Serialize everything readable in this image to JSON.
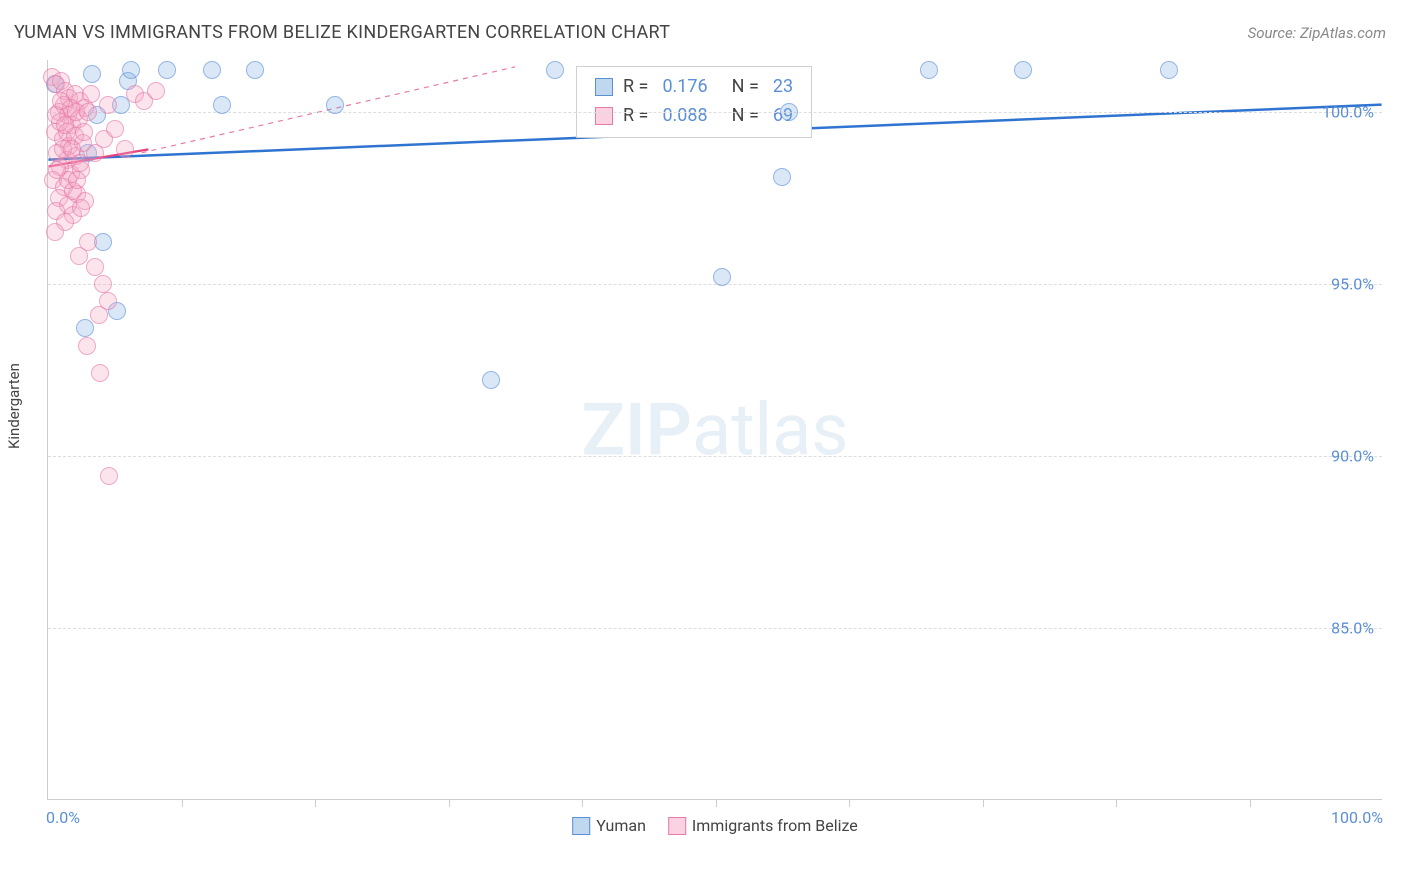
{
  "header": {
    "title": "YUMAN VS IMMIGRANTS FROM BELIZE KINDERGARTEN CORRELATION CHART",
    "source": "Source: ZipAtlas.com"
  },
  "chart": {
    "type": "scatter",
    "watermark": "ZIPatlas",
    "yaxis_label": "Kindergarten",
    "xlim": [
      0,
      100
    ],
    "ylim": [
      80,
      101.5
    ],
    "ytick_labels": [
      "85.0%",
      "90.0%",
      "95.0%",
      "100.0%"
    ],
    "ytick_values": [
      85,
      90,
      95,
      100
    ],
    "xtick_labels": [
      "0.0%",
      "100.0%"
    ],
    "xtick_values": [
      0,
      100
    ],
    "xtick_minor": [
      10,
      20,
      30,
      40,
      50,
      60,
      70,
      80,
      90
    ],
    "grid_color": "#dddddd",
    "axis_color": "#cccccc",
    "background_color": "#ffffff",
    "series": [
      {
        "key": "yuman",
        "label": "Yuman",
        "color_fill": "rgba(129,175,225,0.45)",
        "color_stroke": "#5b8fd6",
        "R": "0.176",
        "N": "23",
        "regression": {
          "x1": 0,
          "y1": 98.6,
          "x2": 100,
          "y2": 100.2,
          "stroke": "#2f74d0",
          "width": 2.5,
          "dash": ""
        },
        "regression_dash": {
          "x1": 7,
          "y1": 98.8,
          "x2": 35,
          "y2": 101.3,
          "stroke": "#e67aa8",
          "width": 1.2,
          "dash": "5,5"
        },
        "points": [
          {
            "x": 0.5,
            "y": 100.8
          },
          {
            "x": 3.3,
            "y": 101.1
          },
          {
            "x": 6,
            "y": 100.9
          },
          {
            "x": 6.2,
            "y": 101.2
          },
          {
            "x": 8.9,
            "y": 101.2
          },
          {
            "x": 12.3,
            "y": 101.2
          },
          {
            "x": 15.5,
            "y": 101.2
          },
          {
            "x": 38,
            "y": 101.2
          },
          {
            "x": 55,
            "y": 98.1
          },
          {
            "x": 66,
            "y": 101.2
          },
          {
            "x": 73,
            "y": 101.2
          },
          {
            "x": 84,
            "y": 101.2
          },
          {
            "x": 3.7,
            "y": 99.9
          },
          {
            "x": 5.5,
            "y": 100.2
          },
          {
            "x": 13,
            "y": 100.2
          },
          {
            "x": 21.5,
            "y": 100.2
          },
          {
            "x": 3,
            "y": 98.8
          },
          {
            "x": 4.1,
            "y": 96.2
          },
          {
            "x": 5.2,
            "y": 94.2
          },
          {
            "x": 2.8,
            "y": 93.7
          },
          {
            "x": 50.5,
            "y": 95.2
          },
          {
            "x": 33.2,
            "y": 92.2
          },
          {
            "x": 55.5,
            "y": 100.0
          }
        ]
      },
      {
        "key": "belize",
        "label": "Immigrants from Belize",
        "color_fill": "rgba(245,165,195,0.45)",
        "color_stroke": "#e67aa8",
        "R": "0.088",
        "N": "69",
        "regression": {
          "x1": 0,
          "y1": 98.4,
          "x2": 7.5,
          "y2": 98.9,
          "stroke": "#e6437f",
          "width": 2.2,
          "dash": ""
        },
        "points": [
          {
            "x": 0.3,
            "y": 101.0
          },
          {
            "x": 0.6,
            "y": 100.8
          },
          {
            "x": 1.0,
            "y": 100.9
          },
          {
            "x": 1.3,
            "y": 100.6
          },
          {
            "x": 1.6,
            "y": 100.4
          },
          {
            "x": 1.2,
            "y": 100.2
          },
          {
            "x": 0.8,
            "y": 100.0
          },
          {
            "x": 1.5,
            "y": 99.9
          },
          {
            "x": 2.0,
            "y": 100.5
          },
          {
            "x": 2.4,
            "y": 100.3
          },
          {
            "x": 2.8,
            "y": 100.1
          },
          {
            "x": 3.2,
            "y": 100.5
          },
          {
            "x": 1.8,
            "y": 99.6
          },
          {
            "x": 0.5,
            "y": 99.4
          },
          {
            "x": 1.1,
            "y": 99.2
          },
          {
            "x": 1.6,
            "y": 99.0
          },
          {
            "x": 0.7,
            "y": 98.8
          },
          {
            "x": 1.4,
            "y": 98.6
          },
          {
            "x": 2.1,
            "y": 98.7
          },
          {
            "x": 0.9,
            "y": 98.4
          },
          {
            "x": 1.7,
            "y": 98.2
          },
          {
            "x": 0.4,
            "y": 98.0
          },
          {
            "x": 1.2,
            "y": 97.8
          },
          {
            "x": 2.5,
            "y": 98.3
          },
          {
            "x": 0.8,
            "y": 97.5
          },
          {
            "x": 1.5,
            "y": 97.3
          },
          {
            "x": 2.2,
            "y": 97.6
          },
          {
            "x": 0.6,
            "y": 97.1
          },
          {
            "x": 1.9,
            "y": 97.0
          },
          {
            "x": 2.8,
            "y": 97.4
          },
          {
            "x": 1.3,
            "y": 96.8
          },
          {
            "x": 0.5,
            "y": 96.5
          },
          {
            "x": 3.5,
            "y": 98.8
          },
          {
            "x": 4.2,
            "y": 99.2
          },
          {
            "x": 5.0,
            "y": 99.5
          },
          {
            "x": 5.8,
            "y": 98.9
          },
          {
            "x": 4.5,
            "y": 100.2
          },
          {
            "x": 6.5,
            "y": 100.5
          },
          {
            "x": 7.2,
            "y": 100.3
          },
          {
            "x": 8.1,
            "y": 100.6
          },
          {
            "x": 3.0,
            "y": 96.2
          },
          {
            "x": 3.5,
            "y": 95.5
          },
          {
            "x": 4.1,
            "y": 95.0
          },
          {
            "x": 2.3,
            "y": 95.8
          },
          {
            "x": 3.8,
            "y": 94.1
          },
          {
            "x": 4.5,
            "y": 94.5
          },
          {
            "x": 2.9,
            "y": 93.2
          },
          {
            "x": 3.9,
            "y": 92.4
          },
          {
            "x": 4.6,
            "y": 89.4
          },
          {
            "x": 0.9,
            "y": 99.7
          },
          {
            "x": 1.1,
            "y": 98.9
          },
          {
            "x": 1.4,
            "y": 99.4
          },
          {
            "x": 1.7,
            "y": 100.1
          },
          {
            "x": 2.0,
            "y": 99.3
          },
          {
            "x": 2.3,
            "y": 99.8
          },
          {
            "x": 2.6,
            "y": 99.1
          },
          {
            "x": 0.6,
            "y": 99.9
          },
          {
            "x": 1.0,
            "y": 100.3
          },
          {
            "x": 1.3,
            "y": 99.6
          },
          {
            "x": 1.8,
            "y": 98.9
          },
          {
            "x": 2.1,
            "y": 100.0
          },
          {
            "x": 2.4,
            "y": 98.5
          },
          {
            "x": 2.7,
            "y": 99.4
          },
          {
            "x": 3.0,
            "y": 100.0
          },
          {
            "x": 1.5,
            "y": 98.0
          },
          {
            "x": 1.9,
            "y": 97.7
          },
          {
            "x": 2.2,
            "y": 98.0
          },
          {
            "x": 2.5,
            "y": 97.2
          },
          {
            "x": 0.7,
            "y": 98.3
          }
        ]
      }
    ],
    "legend_top": {
      "r_label": "R =",
      "n_label": "N ="
    }
  }
}
